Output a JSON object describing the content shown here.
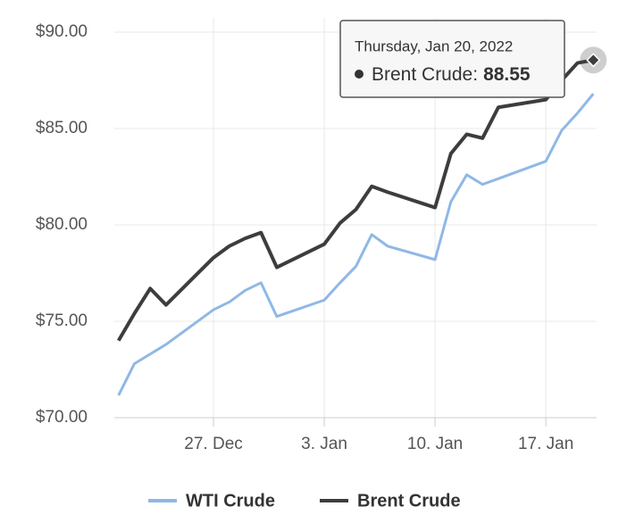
{
  "chart_data": {
    "type": "line",
    "x": [
      "2021-12-21",
      "2021-12-22",
      "2021-12-23",
      "2021-12-24",
      "2021-12-27",
      "2021-12-28",
      "2021-12-29",
      "2021-12-30",
      "2021-12-31",
      "2022-01-03",
      "2022-01-04",
      "2022-01-05",
      "2022-01-06",
      "2022-01-07",
      "2022-01-10",
      "2022-01-11",
      "2022-01-12",
      "2022-01-13",
      "2022-01-14",
      "2022-01-17",
      "2022-01-18",
      "2022-01-19",
      "2022-01-20"
    ],
    "series": [
      {
        "name": "WTI Crude",
        "color": "#8fb8e6",
        "values": [
          71.16,
          72.8,
          73.3,
          73.8,
          75.6,
          76.0,
          76.6,
          77.0,
          75.25,
          76.1,
          77.0,
          77.85,
          79.5,
          78.9,
          78.2,
          81.2,
          82.6,
          82.1,
          82.4,
          83.3,
          84.9,
          85.8,
          86.8
        ]
      },
      {
        "name": "Brent Crude",
        "color": "#3d3d3f",
        "values": [
          74.0,
          75.4,
          76.7,
          75.85,
          78.3,
          78.9,
          79.3,
          79.6,
          77.8,
          79.0,
          80.1,
          80.8,
          82.0,
          81.7,
          80.9,
          83.7,
          84.7,
          84.5,
          86.1,
          86.5,
          87.5,
          88.4,
          88.55
        ]
      }
    ],
    "xlim": [
      "2021-12-20",
      "2022-01-21"
    ],
    "xticks": [
      {
        "value": "2021-12-27",
        "label": "27. Dec"
      },
      {
        "value": "2022-01-03",
        "label": "3. Jan"
      },
      {
        "value": "2022-01-10",
        "label": "10. Jan"
      },
      {
        "value": "2022-01-17",
        "label": "17. Jan"
      }
    ],
    "ylim": [
      70,
      90
    ],
    "yticks": [
      {
        "value": 70,
        "label": "$70.00"
      },
      {
        "value": 75,
        "label": "$75.00"
      },
      {
        "value": 80,
        "label": "$80.00"
      },
      {
        "value": 85,
        "label": "$85.00"
      },
      {
        "value": 90,
        "label": "$90.00"
      }
    ],
    "grid": true,
    "legend": "bottom",
    "tooltip": {
      "title": "Thursday, Jan 20, 2022",
      "label": "Brent Crude:",
      "value": 88.55
    }
  }
}
